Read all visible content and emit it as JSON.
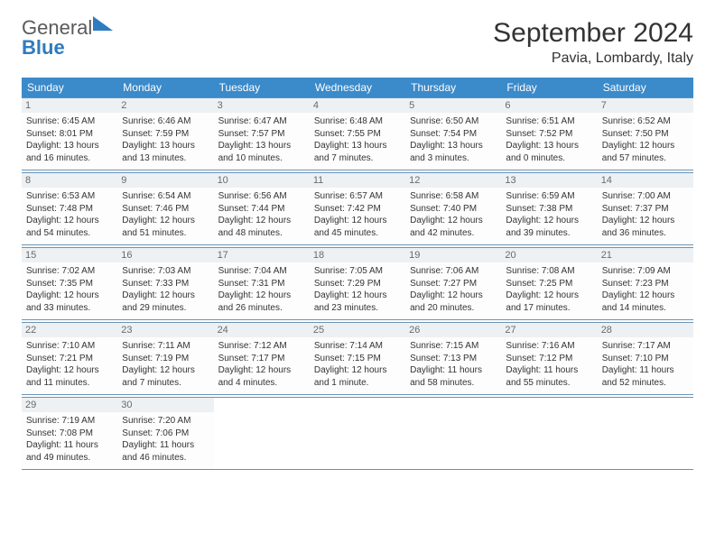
{
  "brand": {
    "word1": "General",
    "word2": "Blue"
  },
  "title": "September 2024",
  "location": "Pavia, Lombardy, Italy",
  "colors": {
    "header_bg": "#3b8aca",
    "header_text": "#ffffff",
    "border": "#6a93b5",
    "daynum_bg": "#eef1f3",
    "daynum_text": "#6a6a6a",
    "body_text": "#333333",
    "logo_gray": "#5a5a5a",
    "logo_blue": "#2f7bbf",
    "background": "#ffffff"
  },
  "typography": {
    "title_fontsize": 30,
    "location_fontsize": 16,
    "header_fontsize": 12,
    "daynum_fontsize": 11,
    "cell_fontsize": 10,
    "logo_fontsize": 22
  },
  "day_headers": [
    "Sunday",
    "Monday",
    "Tuesday",
    "Wednesday",
    "Thursday",
    "Friday",
    "Saturday"
  ],
  "weeks": [
    [
      {
        "n": "1",
        "sr": "6:45 AM",
        "ss": "8:01 PM",
        "dl": "13 hours and 16 minutes."
      },
      {
        "n": "2",
        "sr": "6:46 AM",
        "ss": "7:59 PM",
        "dl": "13 hours and 13 minutes."
      },
      {
        "n": "3",
        "sr": "6:47 AM",
        "ss": "7:57 PM",
        "dl": "13 hours and 10 minutes."
      },
      {
        "n": "4",
        "sr": "6:48 AM",
        "ss": "7:55 PM",
        "dl": "13 hours and 7 minutes."
      },
      {
        "n": "5",
        "sr": "6:50 AM",
        "ss": "7:54 PM",
        "dl": "13 hours and 3 minutes."
      },
      {
        "n": "6",
        "sr": "6:51 AM",
        "ss": "7:52 PM",
        "dl": "13 hours and 0 minutes."
      },
      {
        "n": "7",
        "sr": "6:52 AM",
        "ss": "7:50 PM",
        "dl": "12 hours and 57 minutes."
      }
    ],
    [
      {
        "n": "8",
        "sr": "6:53 AM",
        "ss": "7:48 PM",
        "dl": "12 hours and 54 minutes."
      },
      {
        "n": "9",
        "sr": "6:54 AM",
        "ss": "7:46 PM",
        "dl": "12 hours and 51 minutes."
      },
      {
        "n": "10",
        "sr": "6:56 AM",
        "ss": "7:44 PM",
        "dl": "12 hours and 48 minutes."
      },
      {
        "n": "11",
        "sr": "6:57 AM",
        "ss": "7:42 PM",
        "dl": "12 hours and 45 minutes."
      },
      {
        "n": "12",
        "sr": "6:58 AM",
        "ss": "7:40 PM",
        "dl": "12 hours and 42 minutes."
      },
      {
        "n": "13",
        "sr": "6:59 AM",
        "ss": "7:38 PM",
        "dl": "12 hours and 39 minutes."
      },
      {
        "n": "14",
        "sr": "7:00 AM",
        "ss": "7:37 PM",
        "dl": "12 hours and 36 minutes."
      }
    ],
    [
      {
        "n": "15",
        "sr": "7:02 AM",
        "ss": "7:35 PM",
        "dl": "12 hours and 33 minutes."
      },
      {
        "n": "16",
        "sr": "7:03 AM",
        "ss": "7:33 PM",
        "dl": "12 hours and 29 minutes."
      },
      {
        "n": "17",
        "sr": "7:04 AM",
        "ss": "7:31 PM",
        "dl": "12 hours and 26 minutes."
      },
      {
        "n": "18",
        "sr": "7:05 AM",
        "ss": "7:29 PM",
        "dl": "12 hours and 23 minutes."
      },
      {
        "n": "19",
        "sr": "7:06 AM",
        "ss": "7:27 PM",
        "dl": "12 hours and 20 minutes."
      },
      {
        "n": "20",
        "sr": "7:08 AM",
        "ss": "7:25 PM",
        "dl": "12 hours and 17 minutes."
      },
      {
        "n": "21",
        "sr": "7:09 AM",
        "ss": "7:23 PM",
        "dl": "12 hours and 14 minutes."
      }
    ],
    [
      {
        "n": "22",
        "sr": "7:10 AM",
        "ss": "7:21 PM",
        "dl": "12 hours and 11 minutes."
      },
      {
        "n": "23",
        "sr": "7:11 AM",
        "ss": "7:19 PM",
        "dl": "12 hours and 7 minutes."
      },
      {
        "n": "24",
        "sr": "7:12 AM",
        "ss": "7:17 PM",
        "dl": "12 hours and 4 minutes."
      },
      {
        "n": "25",
        "sr": "7:14 AM",
        "ss": "7:15 PM",
        "dl": "12 hours and 1 minute."
      },
      {
        "n": "26",
        "sr": "7:15 AM",
        "ss": "7:13 PM",
        "dl": "11 hours and 58 minutes."
      },
      {
        "n": "27",
        "sr": "7:16 AM",
        "ss": "7:12 PM",
        "dl": "11 hours and 55 minutes."
      },
      {
        "n": "28",
        "sr": "7:17 AM",
        "ss": "7:10 PM",
        "dl": "11 hours and 52 minutes."
      }
    ],
    [
      {
        "n": "29",
        "sr": "7:19 AM",
        "ss": "7:08 PM",
        "dl": "11 hours and 49 minutes."
      },
      {
        "n": "30",
        "sr": "7:20 AM",
        "ss": "7:06 PM",
        "dl": "11 hours and 46 minutes."
      },
      null,
      null,
      null,
      null,
      null
    ]
  ],
  "labels": {
    "sunrise": "Sunrise:",
    "sunset": "Sunset:",
    "daylight": "Daylight:"
  }
}
